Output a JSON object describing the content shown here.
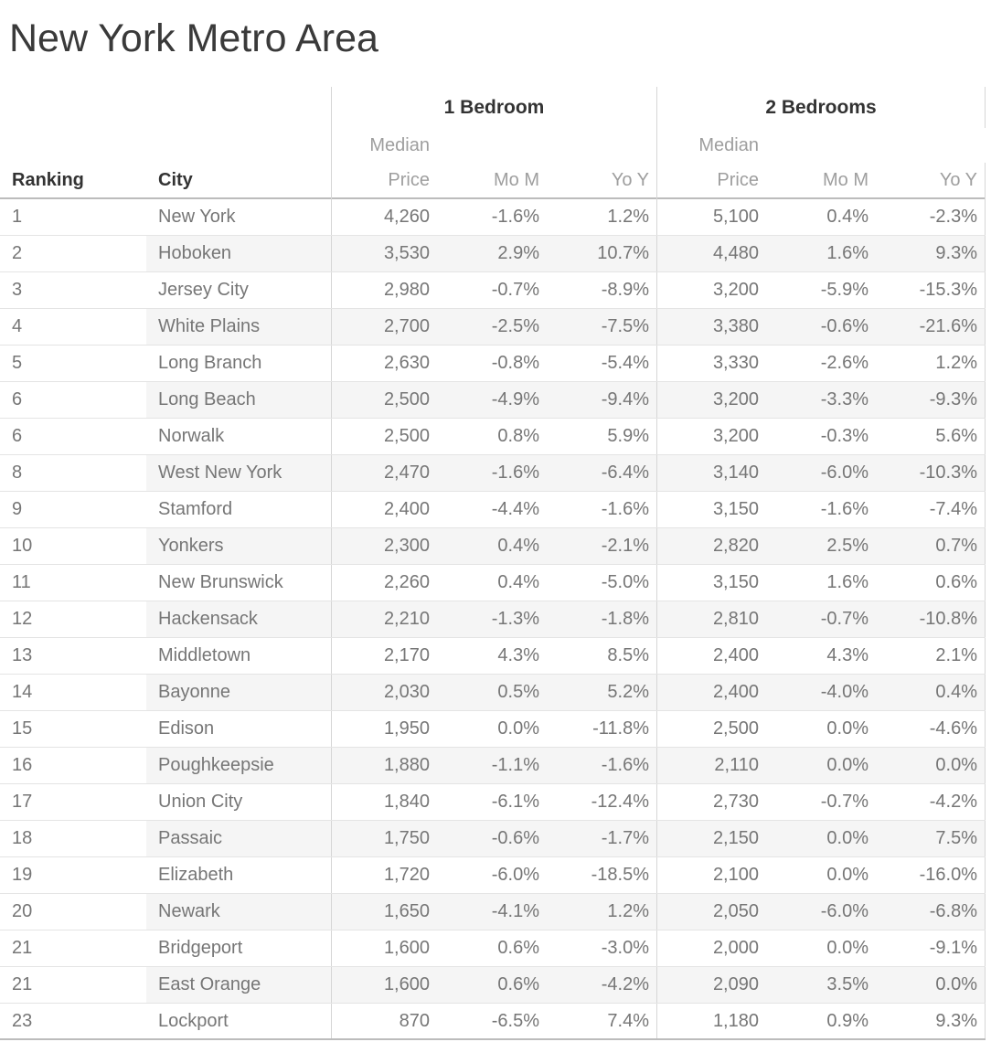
{
  "title": "New York Metro Area",
  "colors": {
    "title_text": "#3a3a3a",
    "header_text": "#333333",
    "subheader_text": "#9e9e9e",
    "data_text": "#767676",
    "zebra_band": "#f5f5f5",
    "row_divider": "#e4e4e4",
    "group_divider": "#d6d6d6",
    "header_rule": "#bcbcbc"
  },
  "table": {
    "ranking_header": "Ranking",
    "city_header": "City",
    "groups": [
      {
        "label": "1 Bedroom",
        "subcolumns": [
          "Median Price",
          "Mo M",
          "Yo Y"
        ]
      },
      {
        "label": "2 Bedrooms",
        "subcolumns": [
          "Median Price",
          "Mo M",
          "Yo Y"
        ]
      }
    ]
  },
  "chart_data": {
    "type": "table",
    "title": "New York Metro Area",
    "column_groups": [
      "1 Bedroom",
      "2 Bedrooms"
    ],
    "columns": [
      "Ranking",
      "City",
      "1 Bedroom Median Price",
      "1 Bedroom Mo M %",
      "1 Bedroom Yo Y %",
      "2 Bedrooms Median Price",
      "2 Bedrooms Mo M %",
      "2 Bedrooms Yo Y %"
    ],
    "rows": [
      [
        1,
        "New York",
        4260,
        -1.6,
        1.2,
        5100,
        0.4,
        -2.3
      ],
      [
        2,
        "Hoboken",
        3530,
        2.9,
        10.7,
        4480,
        1.6,
        9.3
      ],
      [
        3,
        "Jersey City",
        2980,
        -0.7,
        -8.9,
        3200,
        -5.9,
        -15.3
      ],
      [
        4,
        "White Plains",
        2700,
        -2.5,
        -7.5,
        3380,
        -0.6,
        -21.6
      ],
      [
        5,
        "Long Branch",
        2630,
        -0.8,
        -5.4,
        3330,
        -2.6,
        1.2
      ],
      [
        6,
        "Long Beach",
        2500,
        -4.9,
        -9.4,
        3200,
        -3.3,
        -9.3
      ],
      [
        6,
        "Norwalk",
        2500,
        0.8,
        5.9,
        3200,
        -0.3,
        5.6
      ],
      [
        8,
        "West New York",
        2470,
        -1.6,
        -6.4,
        3140,
        -6.0,
        -10.3
      ],
      [
        9,
        "Stamford",
        2400,
        -4.4,
        -1.6,
        3150,
        -1.6,
        -7.4
      ],
      [
        10,
        "Yonkers",
        2300,
        0.4,
        -2.1,
        2820,
        2.5,
        0.7
      ],
      [
        11,
        "New Brunswick",
        2260,
        0.4,
        -5.0,
        3150,
        1.6,
        0.6
      ],
      [
        12,
        "Hackensack",
        2210,
        -1.3,
        -1.8,
        2810,
        -0.7,
        -10.8
      ],
      [
        13,
        "Middletown",
        2170,
        4.3,
        8.5,
        2400,
        4.3,
        2.1
      ],
      [
        14,
        "Bayonne",
        2030,
        0.5,
        5.2,
        2400,
        -4.0,
        0.4
      ],
      [
        15,
        "Edison",
        1950,
        0.0,
        -11.8,
        2500,
        0.0,
        -4.6
      ],
      [
        16,
        "Poughkeepsie",
        1880,
        -1.1,
        -1.6,
        2110,
        0.0,
        0.0
      ],
      [
        17,
        "Union City",
        1840,
        -6.1,
        -12.4,
        2730,
        -0.7,
        -4.2
      ],
      [
        18,
        "Passaic",
        1750,
        -0.6,
        -1.7,
        2150,
        0.0,
        7.5
      ],
      [
        19,
        "Elizabeth",
        1720,
        -6.0,
        -18.5,
        2100,
        0.0,
        -16.0
      ],
      [
        20,
        "Newark",
        1650,
        -4.1,
        1.2,
        2050,
        -6.0,
        -6.8
      ],
      [
        21,
        "Bridgeport",
        1600,
        0.6,
        -3.0,
        2000,
        0.0,
        -9.1
      ],
      [
        21,
        "East Orange",
        1600,
        0.6,
        -4.2,
        2090,
        3.5,
        0.0
      ],
      [
        23,
        "Lockport",
        870,
        -6.5,
        7.4,
        1180,
        0.9,
        9.3
      ]
    ]
  }
}
